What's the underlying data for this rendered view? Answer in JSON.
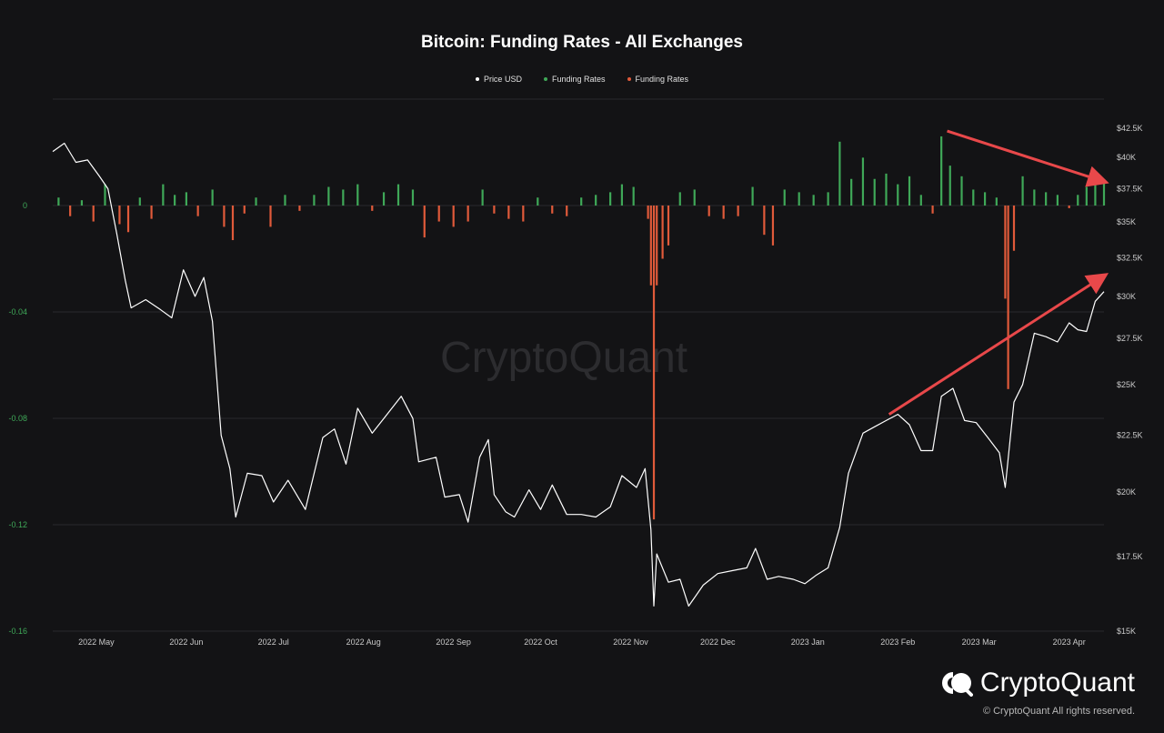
{
  "chart_data": {
    "type": "bar+line",
    "title": "Bitcoin: Funding Rates - All Exchanges",
    "legend": [
      {
        "label": "Price USD",
        "color": "#ffffff"
      },
      {
        "label": "Funding Rates",
        "color": "#3fa858"
      },
      {
        "label": "Funding Rates",
        "color": "#e05a3a"
      }
    ],
    "left_axis": {
      "ticks": [
        "0",
        "-0.04",
        "-0.08",
        "-0.12",
        "-0.16"
      ],
      "values": [
        0,
        -0.04,
        -0.08,
        -0.12,
        -0.16
      ],
      "range": [
        -0.16,
        0.04
      ],
      "color": "#3fa858"
    },
    "right_axis": {
      "ticks": [
        "$42.5K",
        "$40K",
        "$37.5K",
        "$35K",
        "$32.5K",
        "$30K",
        "$27.5K",
        "$25K",
        "$22.5K",
        "$20K",
        "$17.5K",
        "$15K"
      ],
      "scale": "log",
      "range": [
        15000,
        42500
      ]
    },
    "x_axis": {
      "ticks": [
        "2022 May",
        "2022 Jun",
        "2022 Jul",
        "2022 Aug",
        "2022 Sep",
        "2022 Oct",
        "2022 Nov",
        "2022 Dec",
        "2023 Jan",
        "2023 Feb",
        "2023 Mar",
        "2023 Apr"
      ],
      "start": "2022-04-16",
      "end": "2023-04-13"
    },
    "price_points": [
      [
        "2022-04-16",
        40500
      ],
      [
        "2022-04-20",
        41200
      ],
      [
        "2022-04-24",
        39600
      ],
      [
        "2022-04-28",
        39800
      ],
      [
        "2022-05-02",
        38500
      ],
      [
        "2022-05-05",
        37500
      ],
      [
        "2022-05-08",
        34200
      ],
      [
        "2022-05-11",
        31000
      ],
      [
        "2022-05-13",
        29300
      ],
      [
        "2022-05-18",
        29800
      ],
      [
        "2022-05-23",
        29200
      ],
      [
        "2022-05-27",
        28700
      ],
      [
        "2022-05-31",
        31700
      ],
      [
        "2022-06-04",
        30000
      ],
      [
        "2022-06-07",
        31200
      ],
      [
        "2022-06-10",
        28500
      ],
      [
        "2022-06-13",
        22500
      ],
      [
        "2022-06-16",
        21000
      ],
      [
        "2022-06-18",
        19000
      ],
      [
        "2022-06-22",
        20800
      ],
      [
        "2022-06-27",
        20700
      ],
      [
        "2022-07-01",
        19600
      ],
      [
        "2022-07-06",
        20500
      ],
      [
        "2022-07-12",
        19300
      ],
      [
        "2022-07-18",
        22400
      ],
      [
        "2022-07-22",
        22800
      ],
      [
        "2022-07-26",
        21200
      ],
      [
        "2022-07-30",
        23800
      ],
      [
        "2022-08-04",
        22600
      ],
      [
        "2022-08-08",
        23300
      ],
      [
        "2022-08-14",
        24400
      ],
      [
        "2022-08-18",
        23300
      ],
      [
        "2022-08-20",
        21300
      ],
      [
        "2022-08-26",
        21500
      ],
      [
        "2022-08-29",
        19800
      ],
      [
        "2022-09-03",
        19900
      ],
      [
        "2022-09-06",
        18800
      ],
      [
        "2022-09-10",
        21500
      ],
      [
        "2022-09-13",
        22300
      ],
      [
        "2022-09-15",
        19900
      ],
      [
        "2022-09-19",
        19200
      ],
      [
        "2022-09-22",
        19000
      ],
      [
        "2022-09-27",
        20100
      ],
      [
        "2022-10-01",
        19300
      ],
      [
        "2022-10-05",
        20300
      ],
      [
        "2022-10-10",
        19100
      ],
      [
        "2022-10-15",
        19100
      ],
      [
        "2022-10-20",
        19000
      ],
      [
        "2022-10-25",
        19400
      ],
      [
        "2022-10-29",
        20700
      ],
      [
        "2022-11-03",
        20200
      ],
      [
        "2022-11-06",
        21000
      ],
      [
        "2022-11-08",
        18500
      ],
      [
        "2022-11-09",
        15800
      ],
      [
        "2022-11-10",
        17600
      ],
      [
        "2022-11-14",
        16600
      ],
      [
        "2022-11-18",
        16700
      ],
      [
        "2022-11-21",
        15800
      ],
      [
        "2022-11-26",
        16500
      ],
      [
        "2022-12-01",
        16900
      ],
      [
        "2022-12-06",
        17000
      ],
      [
        "2022-12-11",
        17100
      ],
      [
        "2022-12-14",
        17800
      ],
      [
        "2022-12-18",
        16700
      ],
      [
        "2022-12-22",
        16800
      ],
      [
        "2022-12-27",
        16700
      ],
      [
        "2022-12-31",
        16550
      ],
      [
        "2023-01-04",
        16850
      ],
      [
        "2023-01-08",
        17100
      ],
      [
        "2023-01-12",
        18600
      ],
      [
        "2023-01-15",
        20800
      ],
      [
        "2023-01-20",
        22600
      ],
      [
        "2023-01-24",
        22900
      ],
      [
        "2023-01-28",
        23200
      ],
      [
        "2023-02-01",
        23500
      ],
      [
        "2023-02-05",
        23000
      ],
      [
        "2023-02-09",
        21800
      ],
      [
        "2023-02-13",
        21800
      ],
      [
        "2023-02-16",
        24400
      ],
      [
        "2023-02-20",
        24800
      ],
      [
        "2023-02-24",
        23200
      ],
      [
        "2023-02-28",
        23100
      ],
      [
        "2023-03-04",
        22400
      ],
      [
        "2023-03-08",
        21700
      ],
      [
        "2023-03-10",
        20200
      ],
      [
        "2023-03-13",
        24100
      ],
      [
        "2023-03-16",
        25000
      ],
      [
        "2023-03-20",
        27800
      ],
      [
        "2023-03-24",
        27600
      ],
      [
        "2023-03-28",
        27300
      ],
      [
        "2023-04-01",
        28400
      ],
      [
        "2023-04-04",
        28000
      ],
      [
        "2023-04-07",
        27900
      ],
      [
        "2023-04-10",
        29700
      ],
      [
        "2023-04-13",
        30300
      ]
    ],
    "funding_rate_points": [
      [
        "2022-04-18",
        0.003
      ],
      [
        "2022-04-22",
        -0.004
      ],
      [
        "2022-04-26",
        0.002
      ],
      [
        "2022-04-30",
        -0.006
      ],
      [
        "2022-05-04",
        0.008
      ],
      [
        "2022-05-09",
        -0.007
      ],
      [
        "2022-05-12",
        -0.01
      ],
      [
        "2022-05-16",
        0.003
      ],
      [
        "2022-05-20",
        -0.005
      ],
      [
        "2022-05-24",
        0.008
      ],
      [
        "2022-05-28",
        0.004
      ],
      [
        "2022-06-01",
        0.005
      ],
      [
        "2022-06-05",
        -0.004
      ],
      [
        "2022-06-10",
        0.006
      ],
      [
        "2022-06-14",
        -0.008
      ],
      [
        "2022-06-17",
        -0.013
      ],
      [
        "2022-06-21",
        -0.003
      ],
      [
        "2022-06-25",
        0.003
      ],
      [
        "2022-06-30",
        -0.008
      ],
      [
        "2022-07-05",
        0.004
      ],
      [
        "2022-07-10",
        -0.002
      ],
      [
        "2022-07-15",
        0.004
      ],
      [
        "2022-07-20",
        0.007
      ],
      [
        "2022-07-25",
        0.006
      ],
      [
        "2022-07-30",
        0.008
      ],
      [
        "2022-08-04",
        -0.002
      ],
      [
        "2022-08-08",
        0.005
      ],
      [
        "2022-08-13",
        0.008
      ],
      [
        "2022-08-18",
        0.006
      ],
      [
        "2022-08-22",
        -0.012
      ],
      [
        "2022-08-27",
        -0.006
      ],
      [
        "2022-09-01",
        -0.008
      ],
      [
        "2022-09-06",
        -0.006
      ],
      [
        "2022-09-11",
        0.006
      ],
      [
        "2022-09-15",
        -0.003
      ],
      [
        "2022-09-20",
        -0.005
      ],
      [
        "2022-09-25",
        -0.006
      ],
      [
        "2022-09-30",
        0.003
      ],
      [
        "2022-10-05",
        -0.003
      ],
      [
        "2022-10-10",
        -0.004
      ],
      [
        "2022-10-15",
        0.003
      ],
      [
        "2022-10-20",
        0.004
      ],
      [
        "2022-10-25",
        0.005
      ],
      [
        "2022-10-29",
        0.008
      ],
      [
        "2022-11-02",
        0.007
      ],
      [
        "2022-11-07",
        -0.005
      ],
      [
        "2022-11-08",
        -0.03
      ],
      [
        "2022-11-09",
        -0.118
      ],
      [
        "2022-11-10",
        -0.03
      ],
      [
        "2022-11-12",
        -0.02
      ],
      [
        "2022-11-14",
        -0.015
      ],
      [
        "2022-11-18",
        0.005
      ],
      [
        "2022-11-23",
        0.006
      ],
      [
        "2022-11-28",
        -0.004
      ],
      [
        "2022-12-03",
        -0.005
      ],
      [
        "2022-12-08",
        -0.004
      ],
      [
        "2022-12-13",
        0.007
      ],
      [
        "2022-12-17",
        -0.011
      ],
      [
        "2022-12-20",
        -0.015
      ],
      [
        "2022-12-24",
        0.006
      ],
      [
        "2022-12-29",
        0.005
      ],
      [
        "2023-01-03",
        0.004
      ],
      [
        "2023-01-08",
        0.005
      ],
      [
        "2023-01-12",
        0.024
      ],
      [
        "2023-01-16",
        0.01
      ],
      [
        "2023-01-20",
        0.018
      ],
      [
        "2023-01-24",
        0.01
      ],
      [
        "2023-01-28",
        0.012
      ],
      [
        "2023-02-01",
        0.008
      ],
      [
        "2023-02-05",
        0.011
      ],
      [
        "2023-02-09",
        0.004
      ],
      [
        "2023-02-13",
        -0.003
      ],
      [
        "2023-02-16",
        0.026
      ],
      [
        "2023-02-19",
        0.015
      ],
      [
        "2023-02-23",
        0.011
      ],
      [
        "2023-02-27",
        0.006
      ],
      [
        "2023-03-03",
        0.005
      ],
      [
        "2023-03-07",
        0.003
      ],
      [
        "2023-03-10",
        -0.035
      ],
      [
        "2023-03-11",
        -0.069
      ],
      [
        "2023-03-13",
        -0.017
      ],
      [
        "2023-03-16",
        0.011
      ],
      [
        "2023-03-20",
        0.006
      ],
      [
        "2023-03-24",
        0.005
      ],
      [
        "2023-03-28",
        0.004
      ],
      [
        "2023-04-01",
        -0.001
      ],
      [
        "2023-04-04",
        0.004
      ],
      [
        "2023-04-07",
        0.007
      ],
      [
        "2023-04-10",
        0.008
      ],
      [
        "2023-04-13",
        0.009
      ]
    ],
    "annotation_arrows": [
      {
        "from": [
          "2023-02-18",
          0.028
        ],
        "to": [
          "2023-04-13",
          0.009
        ],
        "color": "#e8484a"
      },
      {
        "from": [
          "2023-01-29",
          23500
        ],
        "to": [
          "2023-04-13",
          31300
        ],
        "color": "#e8484a"
      }
    ],
    "grid": true,
    "legend_position": "top-center"
  },
  "watermark": "CryptoQuant",
  "brand": {
    "name": "CryptoQuant",
    "copyright": "© CryptoQuant All rights reserved."
  }
}
